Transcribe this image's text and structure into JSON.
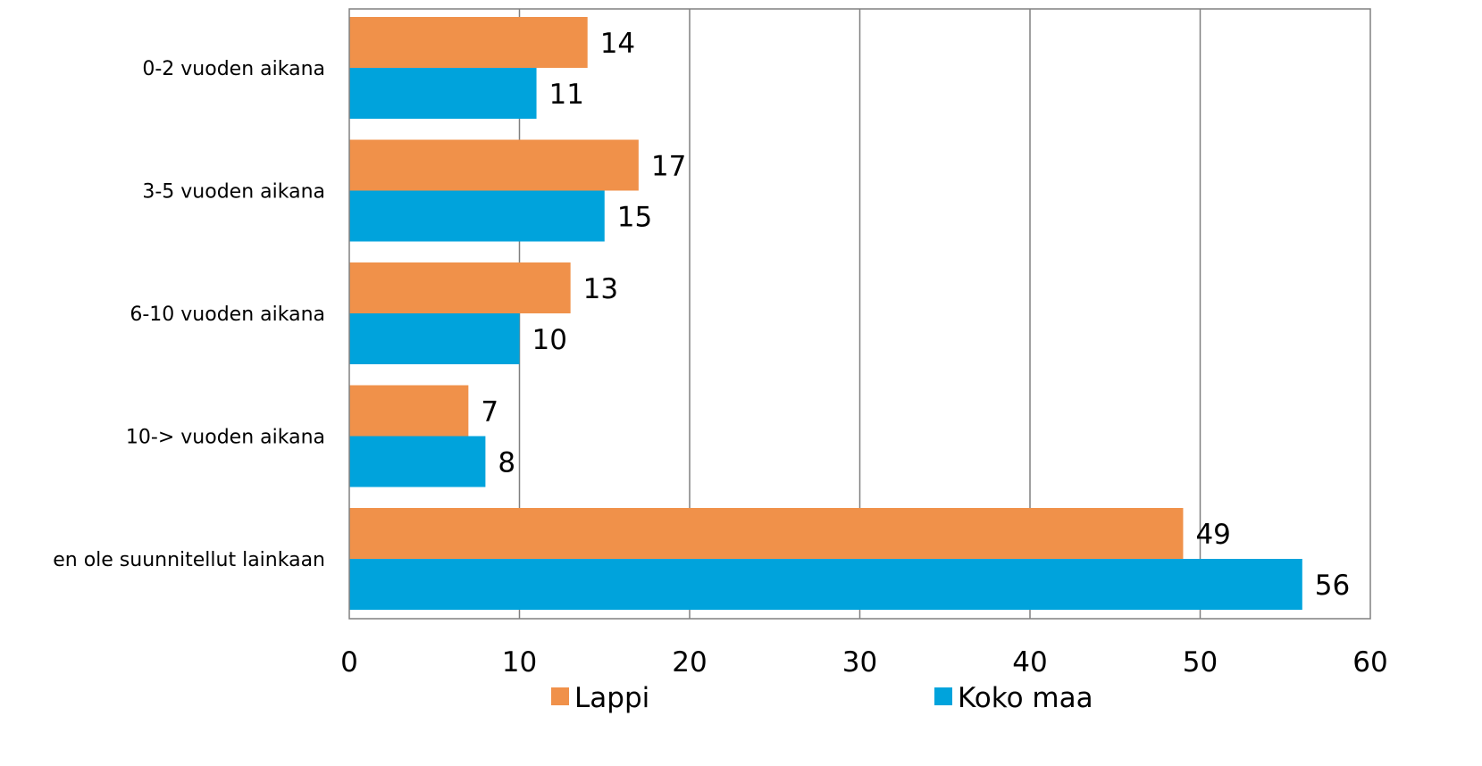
{
  "chart_data": {
    "type": "bar",
    "orientation": "horizontal",
    "categories": [
      "0-2 vuoden aikana",
      "3-5 vuoden aikana",
      "6-10 vuoden aikana",
      "10-> vuoden aikana",
      "en ole suunnitellut  lainkaan"
    ],
    "series": [
      {
        "name": "Lappi",
        "values": [
          14,
          17,
          13,
          7,
          49
        ],
        "color": "#F0914A"
      },
      {
        "name": "Koko maa",
        "values": [
          11,
          15,
          10,
          8,
          56
        ],
        "color": "#00A3DC"
      }
    ],
    "data_labels": {
      "Lappi": [
        "14",
        "17",
        "13",
        "7",
        "49"
      ],
      "Koko maa": [
        "11",
        "15",
        "10",
        "8",
        "56"
      ]
    },
    "xlim": [
      0,
      60
    ],
    "x_ticks": [
      0,
      10,
      20,
      30,
      40,
      50,
      60
    ],
    "x_tick_labels": [
      "0",
      "10",
      "20",
      "30",
      "40",
      "50",
      "60"
    ],
    "grid": "vertical",
    "legend_position": "bottom",
    "gridline_color": "#808080"
  }
}
